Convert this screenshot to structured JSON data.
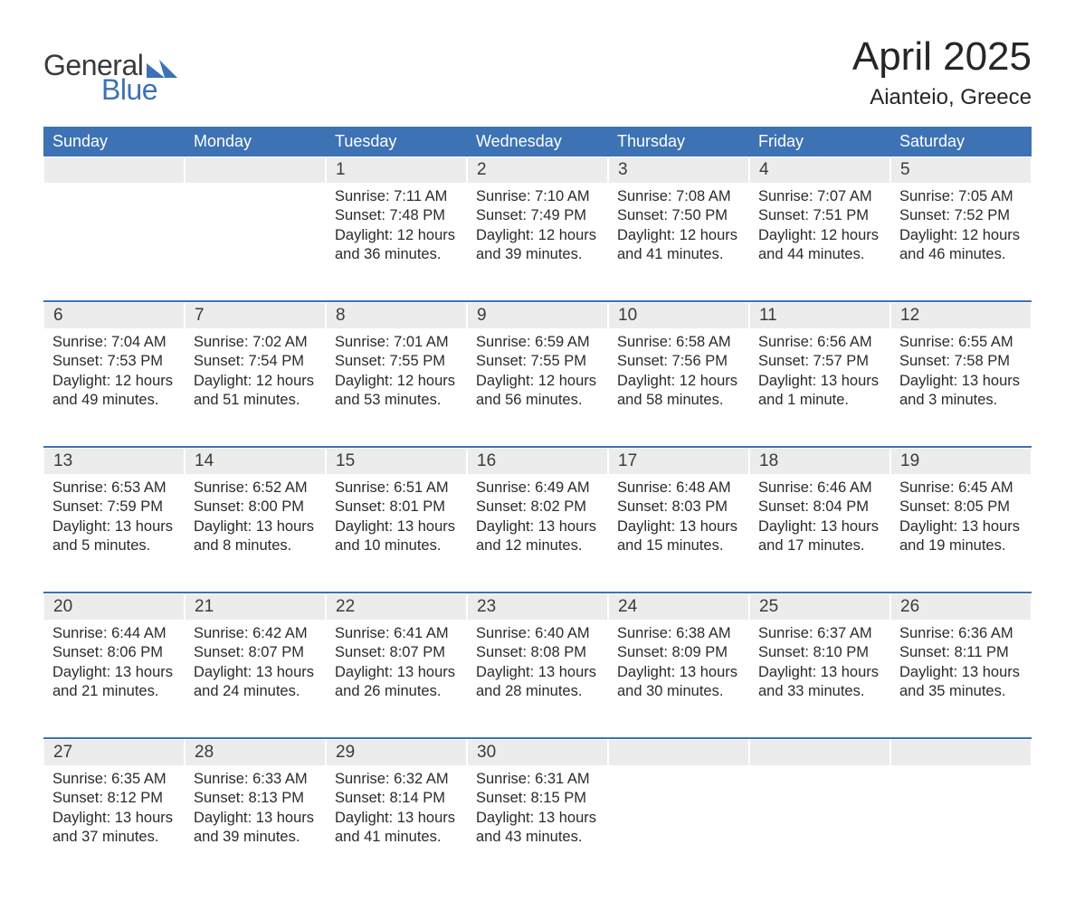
{
  "logo": {
    "word1": "General",
    "word2": "Blue"
  },
  "header": {
    "title": "April 2025",
    "location": "Aianteio, Greece"
  },
  "colors": {
    "header_bg": "#3d72b4",
    "header_text": "#ffffff",
    "daynum_bg": "#ececec",
    "row_border": "#3d72b4",
    "logo_gray": "#3a3a3a",
    "logo_blue": "#3d72b4",
    "body_text": "#2b2b2b"
  },
  "daynames": [
    "Sunday",
    "Monday",
    "Tuesday",
    "Wednesday",
    "Thursday",
    "Friday",
    "Saturday"
  ],
  "weeks": [
    [
      null,
      null,
      {
        "n": "1",
        "sunrise": "Sunrise: 7:11 AM",
        "sunset": "Sunset: 7:48 PM",
        "dl1": "Daylight: 12 hours",
        "dl2": "and 36 minutes."
      },
      {
        "n": "2",
        "sunrise": "Sunrise: 7:10 AM",
        "sunset": "Sunset: 7:49 PM",
        "dl1": "Daylight: 12 hours",
        "dl2": "and 39 minutes."
      },
      {
        "n": "3",
        "sunrise": "Sunrise: 7:08 AM",
        "sunset": "Sunset: 7:50 PM",
        "dl1": "Daylight: 12 hours",
        "dl2": "and 41 minutes."
      },
      {
        "n": "4",
        "sunrise": "Sunrise: 7:07 AM",
        "sunset": "Sunset: 7:51 PM",
        "dl1": "Daylight: 12 hours",
        "dl2": "and 44 minutes."
      },
      {
        "n": "5",
        "sunrise": "Sunrise: 7:05 AM",
        "sunset": "Sunset: 7:52 PM",
        "dl1": "Daylight: 12 hours",
        "dl2": "and 46 minutes."
      }
    ],
    [
      {
        "n": "6",
        "sunrise": "Sunrise: 7:04 AM",
        "sunset": "Sunset: 7:53 PM",
        "dl1": "Daylight: 12 hours",
        "dl2": "and 49 minutes."
      },
      {
        "n": "7",
        "sunrise": "Sunrise: 7:02 AM",
        "sunset": "Sunset: 7:54 PM",
        "dl1": "Daylight: 12 hours",
        "dl2": "and 51 minutes."
      },
      {
        "n": "8",
        "sunrise": "Sunrise: 7:01 AM",
        "sunset": "Sunset: 7:55 PM",
        "dl1": "Daylight: 12 hours",
        "dl2": "and 53 minutes."
      },
      {
        "n": "9",
        "sunrise": "Sunrise: 6:59 AM",
        "sunset": "Sunset: 7:55 PM",
        "dl1": "Daylight: 12 hours",
        "dl2": "and 56 minutes."
      },
      {
        "n": "10",
        "sunrise": "Sunrise: 6:58 AM",
        "sunset": "Sunset: 7:56 PM",
        "dl1": "Daylight: 12 hours",
        "dl2": "and 58 minutes."
      },
      {
        "n": "11",
        "sunrise": "Sunrise: 6:56 AM",
        "sunset": "Sunset: 7:57 PM",
        "dl1": "Daylight: 13 hours",
        "dl2": "and 1 minute."
      },
      {
        "n": "12",
        "sunrise": "Sunrise: 6:55 AM",
        "sunset": "Sunset: 7:58 PM",
        "dl1": "Daylight: 13 hours",
        "dl2": "and 3 minutes."
      }
    ],
    [
      {
        "n": "13",
        "sunrise": "Sunrise: 6:53 AM",
        "sunset": "Sunset: 7:59 PM",
        "dl1": "Daylight: 13 hours",
        "dl2": "and 5 minutes."
      },
      {
        "n": "14",
        "sunrise": "Sunrise: 6:52 AM",
        "sunset": "Sunset: 8:00 PM",
        "dl1": "Daylight: 13 hours",
        "dl2": "and 8 minutes."
      },
      {
        "n": "15",
        "sunrise": "Sunrise: 6:51 AM",
        "sunset": "Sunset: 8:01 PM",
        "dl1": "Daylight: 13 hours",
        "dl2": "and 10 minutes."
      },
      {
        "n": "16",
        "sunrise": "Sunrise: 6:49 AM",
        "sunset": "Sunset: 8:02 PM",
        "dl1": "Daylight: 13 hours",
        "dl2": "and 12 minutes."
      },
      {
        "n": "17",
        "sunrise": "Sunrise: 6:48 AM",
        "sunset": "Sunset: 8:03 PM",
        "dl1": "Daylight: 13 hours",
        "dl2": "and 15 minutes."
      },
      {
        "n": "18",
        "sunrise": "Sunrise: 6:46 AM",
        "sunset": "Sunset: 8:04 PM",
        "dl1": "Daylight: 13 hours",
        "dl2": "and 17 minutes."
      },
      {
        "n": "19",
        "sunrise": "Sunrise: 6:45 AM",
        "sunset": "Sunset: 8:05 PM",
        "dl1": "Daylight: 13 hours",
        "dl2": "and 19 minutes."
      }
    ],
    [
      {
        "n": "20",
        "sunrise": "Sunrise: 6:44 AM",
        "sunset": "Sunset: 8:06 PM",
        "dl1": "Daylight: 13 hours",
        "dl2": "and 21 minutes."
      },
      {
        "n": "21",
        "sunrise": "Sunrise: 6:42 AM",
        "sunset": "Sunset: 8:07 PM",
        "dl1": "Daylight: 13 hours",
        "dl2": "and 24 minutes."
      },
      {
        "n": "22",
        "sunrise": "Sunrise: 6:41 AM",
        "sunset": "Sunset: 8:07 PM",
        "dl1": "Daylight: 13 hours",
        "dl2": "and 26 minutes."
      },
      {
        "n": "23",
        "sunrise": "Sunrise: 6:40 AM",
        "sunset": "Sunset: 8:08 PM",
        "dl1": "Daylight: 13 hours",
        "dl2": "and 28 minutes."
      },
      {
        "n": "24",
        "sunrise": "Sunrise: 6:38 AM",
        "sunset": "Sunset: 8:09 PM",
        "dl1": "Daylight: 13 hours",
        "dl2": "and 30 minutes."
      },
      {
        "n": "25",
        "sunrise": "Sunrise: 6:37 AM",
        "sunset": "Sunset: 8:10 PM",
        "dl1": "Daylight: 13 hours",
        "dl2": "and 33 minutes."
      },
      {
        "n": "26",
        "sunrise": "Sunrise: 6:36 AM",
        "sunset": "Sunset: 8:11 PM",
        "dl1": "Daylight: 13 hours",
        "dl2": "and 35 minutes."
      }
    ],
    [
      {
        "n": "27",
        "sunrise": "Sunrise: 6:35 AM",
        "sunset": "Sunset: 8:12 PM",
        "dl1": "Daylight: 13 hours",
        "dl2": "and 37 minutes."
      },
      {
        "n": "28",
        "sunrise": "Sunrise: 6:33 AM",
        "sunset": "Sunset: 8:13 PM",
        "dl1": "Daylight: 13 hours",
        "dl2": "and 39 minutes."
      },
      {
        "n": "29",
        "sunrise": "Sunrise: 6:32 AM",
        "sunset": "Sunset: 8:14 PM",
        "dl1": "Daylight: 13 hours",
        "dl2": "and 41 minutes."
      },
      {
        "n": "30",
        "sunrise": "Sunrise: 6:31 AM",
        "sunset": "Sunset: 8:15 PM",
        "dl1": "Daylight: 13 hours",
        "dl2": "and 43 minutes."
      },
      null,
      null,
      null
    ]
  ]
}
